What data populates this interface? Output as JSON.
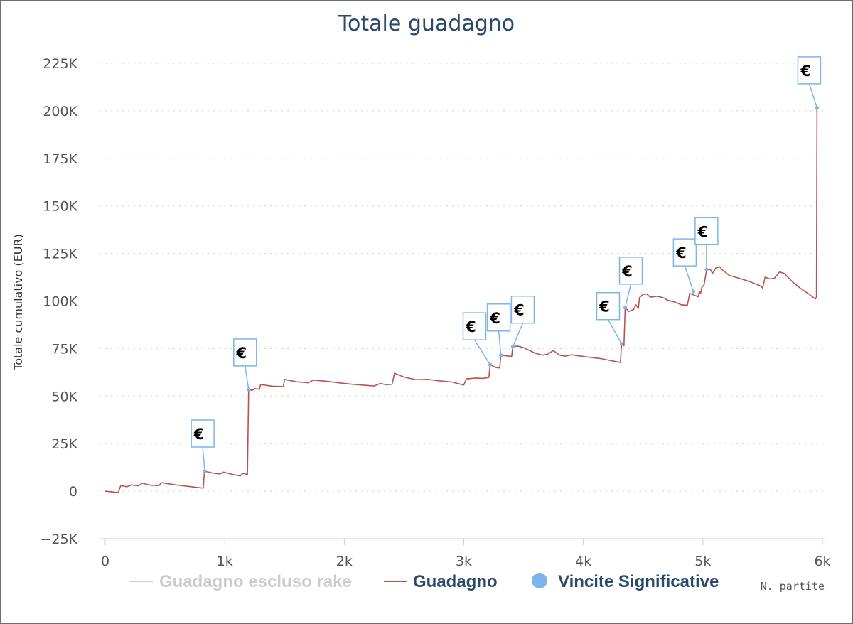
{
  "colors": {
    "title": "#2b4a6b",
    "guadagno": "#b85450",
    "escluso": "#cccccc",
    "vincite": "#7cb5ec",
    "legend_active": "#2b4a6b",
    "legend_inactive": "#cccccc"
  },
  "chart_data": {
    "type": "line",
    "title": "Totale guadagno",
    "ylabel": "Totale cumulativo (EUR)",
    "xlabel": "N. partite",
    "xlim": [
      0,
      6000
    ],
    "ylim": [
      -25000,
      225000
    ],
    "x_ticks": [
      0,
      1000,
      2000,
      3000,
      4000,
      5000,
      6000
    ],
    "x_tick_labels": [
      "0",
      "1k",
      "2k",
      "3k",
      "4k",
      "5k",
      "6k"
    ],
    "y_ticks": [
      -25000,
      0,
      25000,
      50000,
      75000,
      100000,
      125000,
      150000,
      175000,
      200000,
      225000
    ],
    "y_tick_labels": [
      "−25K",
      "0",
      "25K",
      "50K",
      "75K",
      "100K",
      "125K",
      "150K",
      "175K",
      "200K",
      "225K"
    ],
    "grid": true,
    "legend_position": "bottom",
    "series": [
      {
        "name": "Guadagno escluso rake",
        "visible": false,
        "points": []
      },
      {
        "name": "Guadagno",
        "visible": true,
        "points": [
          [
            0,
            0
          ],
          [
            110,
            -700
          ],
          [
            130,
            3000
          ],
          [
            180,
            2300
          ],
          [
            220,
            3300
          ],
          [
            280,
            2800
          ],
          [
            310,
            4200
          ],
          [
            380,
            3100
          ],
          [
            450,
            3000
          ],
          [
            470,
            4500
          ],
          [
            520,
            4000
          ],
          [
            600,
            3200
          ],
          [
            700,
            2500
          ],
          [
            820,
            1600
          ],
          [
            830,
            10500
          ],
          [
            900,
            9500
          ],
          [
            960,
            9000
          ],
          [
            990,
            10000
          ],
          [
            1050,
            9000
          ],
          [
            1130,
            8000
          ],
          [
            1150,
            9500
          ],
          [
            1190,
            8800
          ],
          [
            1200,
            53500
          ],
          [
            1230,
            53000
          ],
          [
            1250,
            54000
          ],
          [
            1290,
            53500
          ],
          [
            1300,
            56000
          ],
          [
            1400,
            55200
          ],
          [
            1490,
            55000
          ],
          [
            1500,
            58800
          ],
          [
            1600,
            57500
          ],
          [
            1700,
            57000
          ],
          [
            1740,
            58400
          ],
          [
            1850,
            57800
          ],
          [
            1950,
            57000
          ],
          [
            2050,
            56300
          ],
          [
            2150,
            55800
          ],
          [
            2250,
            55300
          ],
          [
            2300,
            56600
          ],
          [
            2350,
            56000
          ],
          [
            2400,
            56200
          ],
          [
            2420,
            62000
          ],
          [
            2500,
            60000
          ],
          [
            2600,
            58600
          ],
          [
            2700,
            58800
          ],
          [
            2800,
            58000
          ],
          [
            2900,
            57400
          ],
          [
            3000,
            55800
          ],
          [
            3020,
            59000
          ],
          [
            3100,
            59500
          ],
          [
            3160,
            59300
          ],
          [
            3210,
            59800
          ],
          [
            3220,
            66500
          ],
          [
            3270,
            65000
          ],
          [
            3300,
            64800
          ],
          [
            3310,
            71500
          ],
          [
            3350,
            71200
          ],
          [
            3400,
            70800
          ],
          [
            3410,
            76000
          ],
          [
            3450,
            76300
          ],
          [
            3500,
            75500
          ],
          [
            3550,
            74000
          ],
          [
            3600,
            72500
          ],
          [
            3660,
            71500
          ],
          [
            3700,
            72000
          ],
          [
            3750,
            74000
          ],
          [
            3800,
            71500
          ],
          [
            3850,
            71000
          ],
          [
            3900,
            71700
          ],
          [
            3980,
            71000
          ],
          [
            4050,
            70400
          ],
          [
            4150,
            69700
          ],
          [
            4250,
            68400
          ],
          [
            4310,
            67700
          ],
          [
            4320,
            77500
          ],
          [
            4340,
            76500
          ],
          [
            4350,
            96500
          ],
          [
            4380,
            94500
          ],
          [
            4420,
            95500
          ],
          [
            4440,
            98000
          ],
          [
            4460,
            96000
          ],
          [
            4470,
            101800
          ],
          [
            4500,
            103500
          ],
          [
            4530,
            103700
          ],
          [
            4560,
            102000
          ],
          [
            4620,
            102500
          ],
          [
            4680,
            101500
          ],
          [
            4700,
            100500
          ],
          [
            4760,
            99500
          ],
          [
            4820,
            98000
          ],
          [
            4870,
            97800
          ],
          [
            4890,
            104000
          ],
          [
            4930,
            103000
          ],
          [
            4960,
            102200
          ],
          [
            4970,
            105000
          ],
          [
            4980,
            103800
          ],
          [
            4990,
            107000
          ],
          [
            5010,
            108500
          ],
          [
            5030,
            116000
          ],
          [
            5060,
            116800
          ],
          [
            5080,
            114500
          ],
          [
            5110,
            117500
          ],
          [
            5140,
            118000
          ],
          [
            5160,
            116500
          ],
          [
            5220,
            113500
          ],
          [
            5300,
            112000
          ],
          [
            5400,
            110000
          ],
          [
            5480,
            108000
          ],
          [
            5500,
            106800
          ],
          [
            5520,
            112500
          ],
          [
            5560,
            111600
          ],
          [
            5600,
            112000
          ],
          [
            5640,
            115300
          ],
          [
            5680,
            114500
          ],
          [
            5750,
            110000
          ],
          [
            5820,
            106500
          ],
          [
            5890,
            103500
          ],
          [
            5940,
            101000
          ],
          [
            5950,
            102000
          ],
          [
            5955,
            201500
          ]
        ]
      },
      {
        "name": "Vincite Significative",
        "visible": true,
        "marker": "€",
        "points": [
          [
            833,
            10500
          ],
          [
            1200,
            53500
          ],
          [
            3220,
            66500
          ],
          [
            3310,
            71500
          ],
          [
            3410,
            76000
          ],
          [
            4320,
            77500
          ],
          [
            4350,
            96500
          ],
          [
            4920,
            105000
          ],
          [
            5030,
            116500
          ],
          [
            5955,
            201500
          ]
        ]
      }
    ]
  }
}
